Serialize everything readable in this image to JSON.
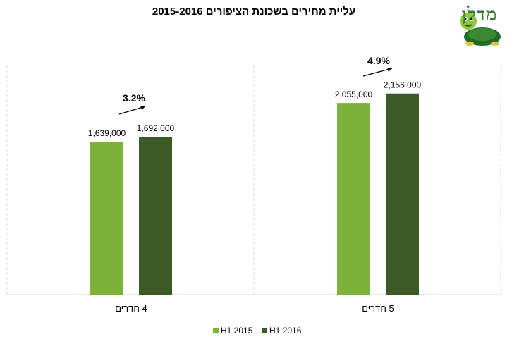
{
  "chart_data": {
    "type": "bar",
    "title": "עליית מחירים בשכונת הציפורים 2015-2016",
    "categories": [
      "4 חדרים",
      "5 חדרים"
    ],
    "series": [
      {
        "name": "H1 2015",
        "color": "#7cb13a",
        "values": [
          1639000,
          2055000
        ],
        "labels": [
          "1,639,000",
          "2,055,000"
        ]
      },
      {
        "name": "H1 2016",
        "color": "#3b5a26",
        "values": [
          1692000,
          2156000
        ],
        "labels": [
          "1,692,000",
          "2,156,000"
        ]
      }
    ],
    "annotations": [
      "3.2%",
      "4.9%"
    ],
    "ylim": [
      0,
      2600000
    ],
    "xlabel": "",
    "ylabel": "",
    "legend": "bottom"
  },
  "logo": {
    "text": "מדלן",
    "mascot": "turtle-icon"
  }
}
